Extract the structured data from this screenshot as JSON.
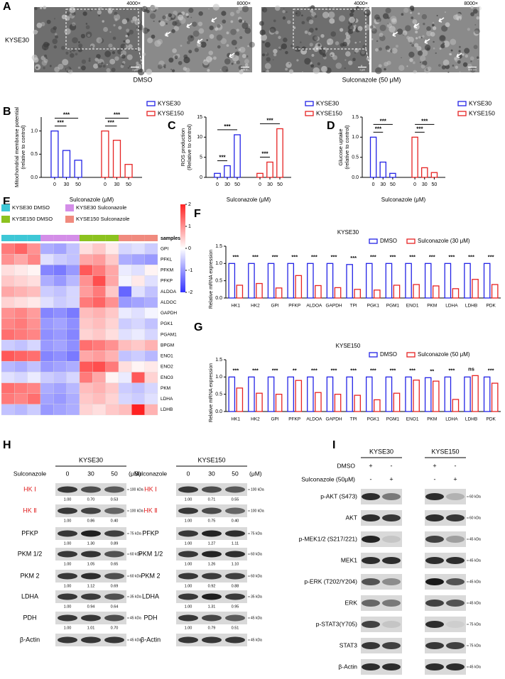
{
  "panel_labels": [
    "A",
    "B",
    "C",
    "D",
    "E",
    "F",
    "G",
    "H",
    "I"
  ],
  "panel_a": {
    "row_label": "KYSE30",
    "magnifications": [
      "4000×",
      "8000×",
      "4000×",
      "8000×"
    ],
    "scale_bars": [
      "1 μm",
      "500 nm",
      "1 μm",
      "500 nm"
    ],
    "conditions": [
      "DMSO",
      "Sulconazole (50 μM)"
    ]
  },
  "chart_data": [
    {
      "type": "bar",
      "ylabel": [
        "Mitochondrial membrane potential",
        "(relative to control)"
      ],
      "xlabel": "Sulconazole (μM)",
      "categories": [
        "0",
        "30",
        "50"
      ],
      "series": [
        {
          "name": "KYSE30",
          "color": "#2323e6",
          "values": [
            1.0,
            0.58,
            0.37
          ]
        },
        {
          "name": "KYSE150",
          "color": "#e62323",
          "values": [
            1.0,
            0.8,
            0.28
          ]
        }
      ],
      "ylim": [
        0,
        1.3
      ],
      "yticks": [
        {
          "value": 0,
          "label": "0.0"
        },
        {
          "value": 0.5,
          "label": "0.5"
        },
        {
          "value": 1,
          "label": "1.0"
        }
      ],
      "annotations": [
        "***",
        "***",
        "***",
        "***"
      ]
    },
    {
      "type": "bar",
      "ylabel": [
        "ROS production",
        "(Relative to control)"
      ],
      "xlabel": "Sulconazole (μM)",
      "categories": [
        "0",
        "30",
        "50"
      ],
      "series": [
        {
          "name": "KYSE30",
          "color": "#2323e6",
          "values": [
            1.0,
            2.9,
            10.6
          ]
        },
        {
          "name": "KYSE150",
          "color": "#e62323",
          "values": [
            1.0,
            3.8,
            12.1
          ]
        }
      ],
      "ylim": [
        0,
        15
      ],
      "yticks": [
        0,
        5,
        10,
        15
      ],
      "annotations": [
        "***",
        "***",
        "***",
        "***"
      ]
    },
    {
      "type": "bar",
      "ylabel": [
        "Glucose uptake",
        "(relative to control)"
      ],
      "xlabel": "Sulconazole (μM)",
      "categories": [
        "0",
        "30",
        "50"
      ],
      "series": [
        {
          "name": "KYSE30",
          "color": "#2323e6",
          "values": [
            1.0,
            0.38,
            0.1
          ]
        },
        {
          "name": "KYSE150",
          "color": "#e62323",
          "values": [
            1.0,
            0.24,
            0.12
          ]
        }
      ],
      "ylim": [
        0,
        1.5
      ],
      "yticks": [
        {
          "value": 0,
          "label": "0.0"
        },
        {
          "value": 0.5,
          "label": "0.5"
        },
        {
          "value": 1,
          "label": "1.0"
        },
        {
          "value": 1.5,
          "label": "1.5"
        }
      ],
      "annotations": [
        "***",
        "***",
        "***",
        "***"
      ]
    },
    {
      "type": "heatmap",
      "annotation_label": "samples",
      "groups": [
        {
          "name": "KYSE30 DMSO",
          "color": "#3ec7d6"
        },
        {
          "name": "KYSE30 Sulconazole",
          "color": "#d48ee8"
        },
        {
          "name": "KYSE150 DMSO",
          "color": "#8cc21f"
        },
        {
          "name": "KYSE150 Sulconazole",
          "color": "#f08a7e"
        }
      ],
      "column_groups": [
        0,
        0,
        0,
        1,
        1,
        1,
        2,
        2,
        2,
        3,
        3,
        3
      ],
      "rows": [
        "GPI",
        "PFKL",
        "PFKM",
        "PFKP",
        "ALDOA",
        "ALDOC",
        "GAPDH",
        "PGK1",
        "PGAM1",
        "BPGM",
        "ENO1",
        "ENO2",
        "ENO3",
        "PKM",
        "LDHA",
        "LDHB"
      ],
      "values": [
        [
          1.2,
          1.4,
          1.0,
          -0.8,
          -0.9,
          -0.6,
          0.3,
          0.5,
          0.2,
          -0.4,
          -0.3,
          -0.5
        ],
        [
          1.0,
          0.8,
          1.1,
          -0.3,
          -0.5,
          -0.6,
          0.8,
          0.9,
          0.5,
          -0.8,
          -0.9,
          -1.0
        ],
        [
          0.3,
          0.2,
          0.1,
          -1.2,
          -1.3,
          -1.0,
          1.5,
          1.2,
          0.8,
          -0.2,
          -0.3,
          0.1
        ],
        [
          0.5,
          0.4,
          0.3,
          -0.8,
          -1.0,
          -0.7,
          1.0,
          1.6,
          0.8,
          -0.1,
          0.2,
          -0.3
        ],
        [
          0.8,
          0.7,
          0.6,
          -0.5,
          -0.6,
          -0.4,
          0.9,
          1.2,
          0.5,
          -1.5,
          -0.3,
          -0.6
        ],
        [
          0.4,
          0.3,
          0.2,
          -0.3,
          -0.5,
          -0.4,
          1.2,
          1.4,
          1.0,
          -1.0,
          -0.9,
          -0.8
        ],
        [
          1.0,
          1.1,
          0.9,
          -1.2,
          -1.1,
          -1.3,
          0.6,
          0.7,
          0.5,
          -0.2,
          -0.3,
          -0.1
        ],
        [
          1.1,
          1.2,
          1.0,
          -1.0,
          -0.9,
          -1.1,
          0.5,
          0.6,
          0.4,
          -0.5,
          -0.4,
          -0.6
        ],
        [
          1.3,
          1.2,
          1.1,
          -1.1,
          -1.0,
          -1.2,
          0.4,
          0.5,
          0.3,
          -0.3,
          -0.2,
          -0.4
        ],
        [
          -0.5,
          -0.6,
          -0.4,
          -1.0,
          -0.9,
          -1.1,
          1.3,
          1.2,
          1.0,
          0.6,
          0.5,
          0.7
        ],
        [
          1.5,
          1.4,
          1.3,
          -1.2,
          -1.1,
          -1.3,
          0.8,
          0.9,
          0.7,
          -0.6,
          -0.5,
          -0.7
        ],
        [
          -0.7,
          -0.8,
          -0.6,
          -1.0,
          -0.9,
          -0.8,
          1.5,
          1.6,
          1.2,
          0.3,
          0.1,
          0.2
        ],
        [
          -0.3,
          -0.4,
          -0.2,
          -0.5,
          -0.6,
          -0.4,
          1.2,
          0.8,
          0.1,
          -0.2,
          1.5,
          0.4
        ],
        [
          1.3,
          1.2,
          1.1,
          -0.8,
          -0.9,
          -0.7,
          0.6,
          0.7,
          0.5,
          -0.5,
          -0.6,
          -0.4
        ],
        [
          1.2,
          1.1,
          1.3,
          -0.9,
          -1.0,
          -0.8,
          0.5,
          0.6,
          0.4,
          -0.4,
          -0.5,
          -0.3
        ],
        [
          -0.6,
          -0.7,
          -0.5,
          -1.0,
          -0.9,
          -0.8,
          0.4,
          0.3,
          0.5,
          0.6,
          2.0,
          0.7
        ]
      ],
      "zlim": [
        -2,
        2
      ],
      "zticks": [
        -2,
        -1,
        0,
        1,
        2
      ],
      "colors": [
        "#3333ff",
        "#ffffff",
        "#ff2222"
      ]
    },
    {
      "type": "bar",
      "title": "KYSE30",
      "ylabel": "Relative mRNA expression",
      "categories": [
        "HK1",
        "HK2",
        "GPI",
        "PFKP",
        "ALDOA",
        "GAPDH",
        "TPI",
        "PGK1",
        "PGM1",
        "ENO1",
        "PKM",
        "LDHA",
        "LDHB",
        "PDK"
      ],
      "series": [
        {
          "name": "DMSO",
          "color": "#2323e6",
          "values": [
            1.0,
            1.0,
            1.0,
            1.0,
            1.0,
            1.0,
            0.97,
            1.0,
            1.0,
            1.0,
            1.0,
            1.0,
            1.0,
            1.0
          ]
        },
        {
          "name": "Sulconazole (30 μM)",
          "color": "#e62323",
          "values": [
            0.37,
            0.42,
            0.29,
            0.65,
            0.36,
            0.3,
            0.25,
            0.23,
            0.37,
            0.39,
            0.35,
            0.27,
            0.54,
            0.39
          ]
        }
      ],
      "ylim": [
        0,
        1.5
      ],
      "yticks": [
        {
          "value": 0,
          "label": "0.0"
        },
        {
          "value": 0.5,
          "label": "0.5"
        },
        {
          "value": 1,
          "label": "1.0"
        },
        {
          "value": 1.5,
          "label": "1.5"
        }
      ],
      "significance": [
        "***",
        "***",
        "***",
        "***",
        "***",
        "***",
        "***",
        "***",
        "***",
        "***",
        "***",
        "***",
        "***",
        "***"
      ]
    },
    {
      "type": "bar",
      "title": "KYSE150",
      "ylabel": "Relative mRNA expression",
      "categories": [
        "HK1",
        "HK2",
        "GPI",
        "PFKP",
        "ALDOA",
        "GAPDH",
        "TPI",
        "PGK1",
        "PGM1",
        "ENO1",
        "PKM",
        "LDHA",
        "LDHB",
        "PDK"
      ],
      "series": [
        {
          "name": "DMSO",
          "color": "#2323e6",
          "values": [
            1.0,
            1.0,
            1.0,
            1.0,
            1.0,
            1.0,
            1.0,
            1.0,
            1.0,
            1.0,
            0.98,
            1.0,
            1.0,
            1.0
          ]
        },
        {
          "name": "Sulconazole (50 μM)",
          "color": "#e62323",
          "values": [
            0.68,
            0.53,
            0.5,
            0.9,
            0.55,
            0.5,
            0.47,
            0.34,
            0.53,
            0.91,
            0.88,
            0.35,
            1.04,
            0.82
          ]
        }
      ],
      "ylim": [
        0,
        1.5
      ],
      "yticks": [
        {
          "value": 0,
          "label": "0.0"
        },
        {
          "value": 0.5,
          "label": "0.5"
        },
        {
          "value": 1,
          "label": "1.0"
        },
        {
          "value": 1.5,
          "label": "1.5"
        }
      ],
      "significance": [
        "***",
        "***",
        "***",
        "**",
        "***",
        "***",
        "***",
        "***",
        "***",
        "***",
        "**",
        "***",
        "ns",
        "***"
      ]
    }
  ],
  "panel_h": {
    "blots": [
      {
        "title": "KYSE30",
        "treatment_label": "Sulconazole",
        "doses": [
          "0",
          "30",
          "50"
        ],
        "unit": "(μM)",
        "rows": [
          {
            "label": "HK Ⅰ",
            "color": "#e02020",
            "size": "100 kDa",
            "quant": [
              "1.00",
              "0.70",
              "0.53"
            ]
          },
          {
            "label": "HK Ⅱ",
            "color": "#e02020",
            "size": "100 kDa",
            "quant": [
              "1.00",
              "0.86",
              "0.40"
            ]
          },
          {
            "label": "PFKP",
            "size": "75 kDa",
            "quant": [
              "1.00",
              "1.30",
              "0.89"
            ]
          },
          {
            "label": "PKM 1/2",
            "size": "60 kDa",
            "quant": [
              "1.00",
              "1.05",
              "0.65"
            ]
          },
          {
            "label": "PKM 2",
            "size": "60 kDa",
            "quant": [
              "1.00",
              "1.12",
              "0.69"
            ]
          },
          {
            "label": "LDHA",
            "size": "35 kDa",
            "quant": [
              "1.00",
              "0.94",
              "0.64"
            ]
          },
          {
            "label": "PDH",
            "size": "45 kDa",
            "quant": [
              "1.00",
              "1.01",
              "0.70"
            ]
          },
          {
            "label": "β-Actin",
            "size": "45 kDa"
          }
        ]
      },
      {
        "title": "KYSE150",
        "treatment_label": "Sulconazole",
        "doses": [
          "0",
          "30",
          "50"
        ],
        "unit": "(μM)",
        "rows": [
          {
            "label": "HK Ⅰ",
            "color": "#e02020",
            "size": "100 kDa",
            "quant": [
              "1.00",
              "0.71",
              "0.55"
            ]
          },
          {
            "label": "HK Ⅱ",
            "color": "#e02020",
            "size": "100 kDa",
            "quant": [
              "1.00",
              "0.75",
              "0.40"
            ]
          },
          {
            "label": "PFKP",
            "size": "75 kDa",
            "quant": [
              "1.00",
              "1.27",
              "1.11"
            ]
          },
          {
            "label": "PKM 1/2",
            "size": "60 kDa",
            "quant": [
              "1.00",
              "1.26",
              "1.10"
            ]
          },
          {
            "label": "PKM 2",
            "size": "60 kDa",
            "quant": [
              "1.00",
              "0.92",
              "0.88"
            ]
          },
          {
            "label": "LDHA",
            "size": "35 kDa",
            "quant": [
              "1.00",
              "1.31",
              "0.95"
            ]
          },
          {
            "label": "PDH",
            "size": "45 kDa",
            "quant": [
              "1.00",
              "0.79",
              "0.51"
            ]
          },
          {
            "label": "β-Actin",
            "size": "45 kDa"
          }
        ]
      }
    ]
  },
  "panel_i": {
    "cell_lines": [
      "KYSE30",
      "KYSE150"
    ],
    "conditions": [
      {
        "label": "DMSO",
        "marks": [
          "+",
          "-",
          "+",
          "-"
        ]
      },
      {
        "label": "Sulconazole (50μM)",
        "marks": [
          "-",
          "+",
          "-",
          "+"
        ]
      }
    ],
    "rows": [
      {
        "label": "p-AKT (S473)",
        "size": "60 kDa"
      },
      {
        "label": "AKT",
        "size": "60 kDa"
      },
      {
        "label": "p-MEK1/2 (S217/221)",
        "size": "45 kDa"
      },
      {
        "label": "MEK1",
        "size": "45 kDa"
      },
      {
        "label": "p-ERK (T202/Y204)",
        "size": "45 kDa"
      },
      {
        "label": "ERK",
        "size": "45 kDa"
      },
      {
        "label": "p-STAT3(Y705)",
        "size": "75 kDa"
      },
      {
        "label": "STAT3",
        "size": "75 kDa"
      },
      {
        "label": "β-Actin",
        "size": "45 kDa"
      }
    ]
  }
}
